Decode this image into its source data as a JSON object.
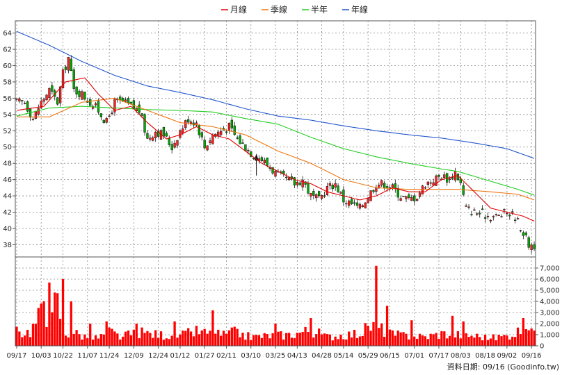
{
  "chart_data": {
    "type": "line",
    "legend": [
      {
        "name": "月線",
        "color": "#e00000"
      },
      {
        "name": "季線",
        "color": "#ee7711"
      },
      {
        "name": "半年",
        "color": "#22cc22"
      },
      {
        "name": "年線",
        "color": "#2255cc"
      }
    ],
    "price_axis": {
      "ticks": [
        38,
        40,
        42,
        44,
        46,
        48,
        50,
        52,
        54,
        56,
        58,
        60,
        62,
        64
      ],
      "range": [
        36.5,
        65.5
      ],
      "grid": true
    },
    "volume_axis": {
      "ticks": [
        "0",
        "1,000",
        "2,000",
        "3,000",
        "4,000",
        "5,000",
        "6,000",
        "7,000"
      ],
      "range": [
        0,
        8000
      ],
      "grid": true
    },
    "x_labels": [
      "09/17",
      "10/03",
      "10/22",
      "11/07",
      "11/24",
      "12/09",
      "12/24",
      "01/12",
      "01/27",
      "02/11",
      "03/10",
      "03/25",
      "04/13",
      "04/28",
      "05/14",
      "05/29",
      "06/15",
      "07/01",
      "07/17",
      "08/03",
      "08/18",
      "09/02",
      "09/16"
    ],
    "price_close_anchors": [
      [
        0,
        55.5
      ],
      [
        3,
        55.5
      ],
      [
        6,
        53.5
      ],
      [
        9,
        55.5
      ],
      [
        12,
        57.0
      ],
      [
        15,
        55.5
      ],
      [
        17,
        59.0
      ],
      [
        19,
        61.0
      ],
      [
        21,
        57.0
      ],
      [
        24,
        56.5
      ],
      [
        27,
        55.5
      ],
      [
        30,
        54.5
      ],
      [
        33,
        53.0
      ],
      [
        36,
        55.5
      ],
      [
        39,
        55.5
      ],
      [
        42,
        55.0
      ],
      [
        45,
        54.5
      ],
      [
        48,
        51.0
      ],
      [
        51,
        52.0
      ],
      [
        54,
        51.5
      ],
      [
        57,
        50.0
      ],
      [
        60,
        52.0
      ],
      [
        63,
        53.5
      ],
      [
        66,
        53.0
      ],
      [
        69,
        50.0
      ],
      [
        72,
        51.5
      ],
      [
        75,
        52.0
      ],
      [
        78,
        52.5
      ],
      [
        81,
        51.0
      ],
      [
        84,
        50.0
      ],
      [
        87,
        49.0
      ],
      [
        90,
        48.5
      ],
      [
        93,
        47.5
      ],
      [
        96,
        46.5
      ],
      [
        99,
        46.0
      ],
      [
        102,
        45.5
      ],
      [
        105,
        46.0
      ],
      [
        108,
        44.0
      ],
      [
        111,
        43.5
      ],
      [
        114,
        45.0
      ],
      [
        117,
        45.5
      ],
      [
        120,
        43.5
      ],
      [
        123,
        43.0
      ],
      [
        126,
        42.5
      ],
      [
        129,
        44.0
      ],
      [
        132,
        45.5
      ],
      [
        135,
        45.5
      ],
      [
        138,
        45.0
      ],
      [
        141,
        44.0
      ],
      [
        144,
        43.5
      ],
      [
        147,
        44.0
      ],
      [
        150,
        45.5
      ],
      [
        153,
        46.0
      ],
      [
        156,
        46.5
      ],
      [
        159,
        46.0
      ],
      [
        161,
        47.0
      ],
      [
        163,
        45.5
      ],
      [
        165,
        42.5
      ],
      [
        168,
        42.0
      ],
      [
        171,
        41.8
      ],
      [
        174,
        41.5
      ],
      [
        177,
        41.5
      ],
      [
        180,
        42.0
      ],
      [
        183,
        41.5
      ],
      [
        186,
        39.5
      ],
      [
        188,
        38.0
      ]
    ],
    "ma_month": [
      [
        0,
        54.5
      ],
      [
        10,
        55.0
      ],
      [
        18,
        58.0
      ],
      [
        25,
        58.5
      ],
      [
        30,
        56.5
      ],
      [
        36,
        54.5
      ],
      [
        42,
        55.0
      ],
      [
        48,
        53.0
      ],
      [
        55,
        51.0
      ],
      [
        60,
        51.5
      ],
      [
        66,
        52.5
      ],
      [
        72,
        51.5
      ],
      [
        78,
        51.0
      ],
      [
        84,
        49.5
      ],
      [
        90,
        48.0
      ],
      [
        96,
        47.0
      ],
      [
        102,
        46.0
      ],
      [
        108,
        45.5
      ],
      [
        114,
        44.5
      ],
      [
        120,
        44.0
      ],
      [
        126,
        43.5
      ],
      [
        132,
        44.0
      ],
      [
        138,
        45.0
      ],
      [
        144,
        44.5
      ],
      [
        150,
        44.5
      ],
      [
        156,
        46.0
      ],
      [
        162,
        46.5
      ],
      [
        168,
        44.5
      ],
      [
        174,
        42.5
      ],
      [
        180,
        42.0
      ],
      [
        186,
        41.5
      ],
      [
        190,
        40.9
      ]
    ],
    "ma_quarter": [
      [
        0,
        53.7
      ],
      [
        12,
        53.7
      ],
      [
        24,
        55.5
      ],
      [
        36,
        56.0
      ],
      [
        48,
        54.5
      ],
      [
        60,
        53.0
      ],
      [
        72,
        52.5
      ],
      [
        84,
        51.5
      ],
      [
        96,
        49.5
      ],
      [
        108,
        48.0
      ],
      [
        120,
        46.0
      ],
      [
        132,
        45.0
      ],
      [
        144,
        44.8
      ],
      [
        156,
        44.8
      ],
      [
        162,
        44.8
      ],
      [
        174,
        44.5
      ],
      [
        184,
        44.2
      ],
      [
        190,
        43.5
      ]
    ],
    "ma_half": [
      [
        0,
        53.8
      ],
      [
        12,
        54.8
      ],
      [
        24,
        55.0
      ],
      [
        36,
        54.8
      ],
      [
        48,
        54.6
      ],
      [
        60,
        54.5
      ],
      [
        72,
        54.3
      ],
      [
        84,
        53.5
      ],
      [
        96,
        52.8
      ],
      [
        108,
        51.2
      ],
      [
        120,
        49.8
      ],
      [
        132,
        48.8
      ],
      [
        144,
        48.0
      ],
      [
        156,
        47.3
      ],
      [
        162,
        47.0
      ],
      [
        172,
        46.0
      ],
      [
        184,
        44.8
      ],
      [
        190,
        44.1
      ]
    ],
    "ma_year": [
      [
        0,
        64.2
      ],
      [
        12,
        62.5
      ],
      [
        24,
        60.5
      ],
      [
        36,
        58.8
      ],
      [
        48,
        57.5
      ],
      [
        60,
        56.7
      ],
      [
        72,
        55.8
      ],
      [
        84,
        54.7
      ],
      [
        96,
        53.8
      ],
      [
        108,
        53.3
      ],
      [
        120,
        52.6
      ],
      [
        132,
        52.0
      ],
      [
        144,
        51.5
      ],
      [
        156,
        51.1
      ],
      [
        168,
        50.5
      ],
      [
        180,
        49.8
      ],
      [
        190,
        48.6
      ]
    ],
    "volume_anchors": [
      [
        0,
        1200
      ],
      [
        5,
        1300
      ],
      [
        8,
        2500
      ],
      [
        10,
        4500
      ],
      [
        12,
        1500
      ],
      [
        15,
        3800
      ],
      [
        18,
        1000
      ],
      [
        21,
        1200
      ],
      [
        24,
        900
      ],
      [
        30,
        700
      ],
      [
        34,
        1300
      ],
      [
        38,
        800
      ],
      [
        45,
        1200
      ],
      [
        52,
        1000
      ],
      [
        60,
        900
      ],
      [
        66,
        1300
      ],
      [
        70,
        1100
      ],
      [
        76,
        1000
      ],
      [
        80,
        1200
      ],
      [
        86,
        800
      ],
      [
        92,
        900
      ],
      [
        100,
        1000
      ],
      [
        108,
        1400
      ],
      [
        114,
        800
      ],
      [
        120,
        1000
      ],
      [
        126,
        1100
      ],
      [
        130,
        1800
      ],
      [
        133,
        1600
      ],
      [
        138,
        1000
      ],
      [
        144,
        900
      ],
      [
        150,
        800
      ],
      [
        156,
        1100
      ],
      [
        162,
        1000
      ],
      [
        168,
        900
      ],
      [
        174,
        700
      ],
      [
        180,
        900
      ],
      [
        186,
        1500
      ],
      [
        188,
        2200
      ],
      [
        190,
        1000
      ]
    ],
    "volume_spikes": [
      [
        9,
        3800
      ],
      [
        12,
        5700
      ],
      [
        14,
        4800
      ],
      [
        17,
        6000
      ],
      [
        20,
        4000
      ],
      [
        27,
        2000
      ],
      [
        33,
        2200
      ],
      [
        44,
        2000
      ],
      [
        58,
        2200
      ],
      [
        72,
        3200
      ],
      [
        95,
        2000
      ],
      [
        108,
        2500
      ],
      [
        132,
        7200
      ],
      [
        136,
        3600
      ],
      [
        145,
        2300
      ],
      [
        160,
        2700
      ],
      [
        164,
        2200
      ],
      [
        186,
        2500
      ]
    ],
    "arrow_index": 88,
    "gap_index": 165,
    "source_text": "資料日期: 09/16  (Goodinfo.tw)"
  }
}
